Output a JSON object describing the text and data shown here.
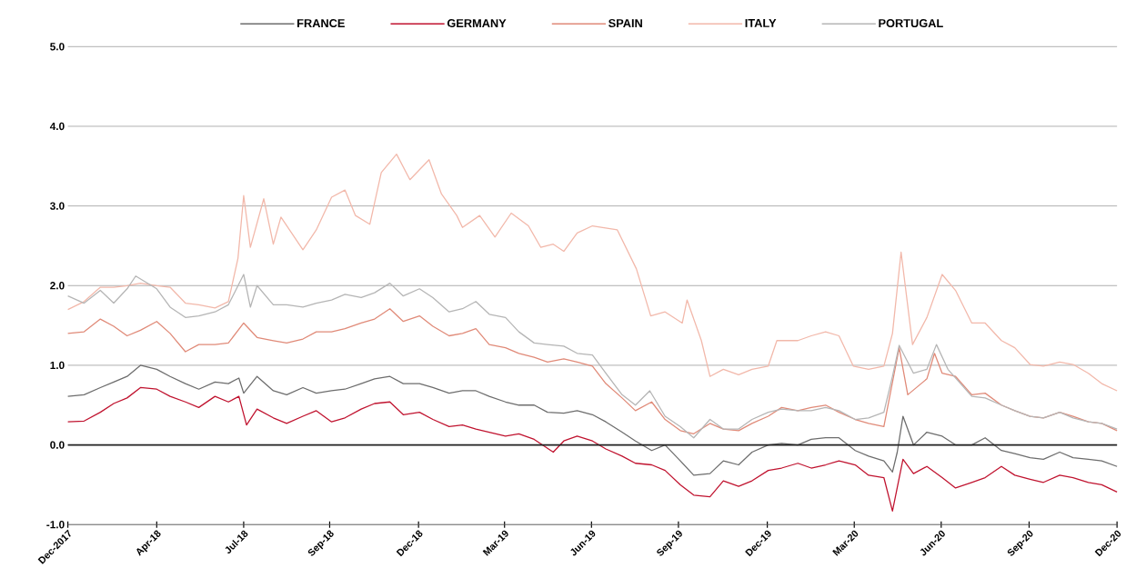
{
  "chart_data": {
    "type": "line",
    "xlim": [
      "2017-12-29",
      "2020-12-31"
    ],
    "xticks": [
      {
        "value": "2017-12-29",
        "label": "Dec-2017"
      },
      {
        "value": "2018-04-01",
        "label": "Apr-18"
      },
      {
        "value": "2018-07-01",
        "label": "Jul-18"
      },
      {
        "value": "2018-09-29",
        "label": "Sep-18"
      },
      {
        "value": "2018-12-31",
        "label": "Dec-18"
      },
      {
        "value": "2019-03-31",
        "label": "Mar-19"
      },
      {
        "value": "2019-06-30",
        "label": "Jun-19"
      },
      {
        "value": "2019-09-29",
        "label": "Sep-19"
      },
      {
        "value": "2019-12-31",
        "label": "Dec-19"
      },
      {
        "value": "2020-03-31",
        "label": "Mar-20"
      },
      {
        "value": "2020-06-30",
        "label": "Jun-20"
      },
      {
        "value": "2020-09-30",
        "label": "Sep-20"
      },
      {
        "value": "2020-12-31",
        "label": "Dec-20"
      }
    ],
    "ylim": [
      -1,
      5
    ],
    "yticks": [
      {
        "value": -1,
        "label": "-1.0"
      },
      {
        "value": 0,
        "label": "0.0"
      },
      {
        "value": 1,
        "label": "1.0"
      },
      {
        "value": 2,
        "label": "2.0"
      },
      {
        "value": 3,
        "label": "3.0"
      },
      {
        "value": 4,
        "label": "4.0"
      },
      {
        "value": 5,
        "label": "5.0"
      }
    ],
    "grid": "y",
    "legend": "top",
    "line_style": "solid",
    "ref_lines": [
      {
        "axis": "y",
        "value": 0,
        "color": "#222222"
      }
    ],
    "series": [
      {
        "name": "FRANCE",
        "color": "#6d6d6d",
        "x": [
          "2017-12-29",
          "2018-01-15",
          "2018-02-01",
          "2018-02-15",
          "2018-03-01",
          "2018-03-15",
          "2018-04-01",
          "2018-04-15",
          "2018-05-01",
          "2018-05-15",
          "2018-06-01",
          "2018-06-15",
          "2018-06-26",
          "2018-07-01",
          "2018-07-15",
          "2018-08-01",
          "2018-08-15",
          "2018-09-01",
          "2018-09-15",
          "2018-10-01",
          "2018-10-15",
          "2018-11-01",
          "2018-11-15",
          "2018-12-01",
          "2018-12-15",
          "2019-01-01",
          "2019-01-15",
          "2019-02-01",
          "2019-02-15",
          "2019-03-01",
          "2019-03-15",
          "2019-04-01",
          "2019-04-15",
          "2019-05-01",
          "2019-05-15",
          "2019-06-01",
          "2019-06-15",
          "2019-07-01",
          "2019-07-15",
          "2019-08-01",
          "2019-08-15",
          "2019-09-01",
          "2019-09-15",
          "2019-10-01",
          "2019-10-15",
          "2019-11-01",
          "2019-11-15",
          "2019-12-01",
          "2019-12-15",
          "2020-01-01",
          "2020-01-15",
          "2020-02-01",
          "2020-02-15",
          "2020-03-01",
          "2020-03-15",
          "2020-04-01",
          "2020-04-15",
          "2020-05-01",
          "2020-05-10",
          "2020-05-15",
          "2020-05-21",
          "2020-06-01",
          "2020-06-15",
          "2020-07-01",
          "2020-07-15",
          "2020-08-01",
          "2020-08-15",
          "2020-09-01",
          "2020-09-15",
          "2020-10-01",
          "2020-10-15",
          "2020-11-01",
          "2020-11-15",
          "2020-12-01",
          "2020-12-15",
          "2020-12-31"
        ],
        "values": [
          0.61,
          0.63,
          0.72,
          0.79,
          0.86,
          1.0,
          0.95,
          0.86,
          0.77,
          0.7,
          0.79,
          0.77,
          0.84,
          0.65,
          0.86,
          0.68,
          0.63,
          0.72,
          0.65,
          0.68,
          0.7,
          0.77,
          0.83,
          0.86,
          0.77,
          0.77,
          0.72,
          0.65,
          0.68,
          0.68,
          0.61,
          0.54,
          0.5,
          0.5,
          0.41,
          0.4,
          0.43,
          0.38,
          0.29,
          0.16,
          0.05,
          -0.07,
          0.0,
          -0.2,
          -0.38,
          -0.36,
          -0.2,
          -0.25,
          -0.09,
          0.0,
          0.02,
          0.0,
          0.07,
          0.09,
          0.09,
          -0.07,
          -0.14,
          -0.2,
          -0.34,
          -0.09,
          0.36,
          0.0,
          0.16,
          0.11,
          0.0,
          0.0,
          0.09,
          -0.07,
          -0.11,
          -0.16,
          -0.18,
          -0.09,
          -0.16,
          -0.18,
          -0.2,
          -0.27
        ]
      },
      {
        "name": "GERMANY",
        "color": "#c0132f",
        "x": [
          "2017-12-29",
          "2018-01-15",
          "2018-02-01",
          "2018-02-15",
          "2018-03-01",
          "2018-03-15",
          "2018-04-01",
          "2018-04-15",
          "2018-05-01",
          "2018-05-15",
          "2018-06-01",
          "2018-06-15",
          "2018-06-26",
          "2018-07-04",
          "2018-07-15",
          "2018-08-01",
          "2018-08-15",
          "2018-09-01",
          "2018-09-15",
          "2018-10-01",
          "2018-10-15",
          "2018-11-01",
          "2018-11-15",
          "2018-12-01",
          "2018-12-15",
          "2019-01-01",
          "2019-01-15",
          "2019-02-01",
          "2019-02-15",
          "2019-03-01",
          "2019-03-15",
          "2019-04-01",
          "2019-04-15",
          "2019-05-01",
          "2019-05-21",
          "2019-06-01",
          "2019-06-15",
          "2019-07-01",
          "2019-07-15",
          "2019-08-01",
          "2019-08-15",
          "2019-09-01",
          "2019-09-15",
          "2019-10-01",
          "2019-10-15",
          "2019-11-01",
          "2019-11-15",
          "2019-12-01",
          "2019-12-15",
          "2020-01-01",
          "2020-01-15",
          "2020-02-01",
          "2020-02-15",
          "2020-03-01",
          "2020-03-15",
          "2020-04-01",
          "2020-04-15",
          "2020-05-01",
          "2020-05-10",
          "2020-05-21",
          "2020-06-01",
          "2020-06-15",
          "2020-07-01",
          "2020-07-15",
          "2020-08-01",
          "2020-08-15",
          "2020-09-01",
          "2020-09-15",
          "2020-10-01",
          "2020-10-15",
          "2020-11-01",
          "2020-11-15",
          "2020-12-01",
          "2020-12-15",
          "2020-12-31"
        ],
        "values": [
          0.29,
          0.3,
          0.41,
          0.52,
          0.59,
          0.72,
          0.7,
          0.61,
          0.54,
          0.47,
          0.61,
          0.54,
          0.61,
          0.25,
          0.45,
          0.34,
          0.27,
          0.36,
          0.43,
          0.29,
          0.34,
          0.45,
          0.52,
          0.54,
          0.38,
          0.41,
          0.32,
          0.23,
          0.25,
          0.2,
          0.16,
          0.11,
          0.14,
          0.07,
          -0.09,
          0.05,
          0.11,
          0.05,
          -0.05,
          -0.14,
          -0.23,
          -0.25,
          -0.32,
          -0.5,
          -0.63,
          -0.65,
          -0.45,
          -0.52,
          -0.45,
          -0.32,
          -0.29,
          -0.23,
          -0.29,
          -0.25,
          -0.2,
          -0.25,
          -0.38,
          -0.41,
          -0.83,
          -0.18,
          -0.36,
          -0.27,
          -0.41,
          -0.54,
          -0.47,
          -0.41,
          -0.27,
          -0.38,
          -0.43,
          -0.47,
          -0.38,
          -0.41,
          -0.47,
          -0.5,
          -0.59
        ]
      },
      {
        "name": "SPAIN",
        "color": "#e08a78",
        "x": [
          "2017-12-29",
          "2018-01-15",
          "2018-02-01",
          "2018-02-15",
          "2018-03-01",
          "2018-03-15",
          "2018-04-01",
          "2018-04-15",
          "2018-05-01",
          "2018-05-15",
          "2018-06-01",
          "2018-06-15",
          "2018-07-01",
          "2018-07-15",
          "2018-08-01",
          "2018-08-15",
          "2018-09-01",
          "2018-09-15",
          "2018-10-01",
          "2018-10-15",
          "2018-11-01",
          "2018-11-15",
          "2018-12-01",
          "2018-12-15",
          "2019-01-01",
          "2019-01-15",
          "2019-02-01",
          "2019-02-15",
          "2019-03-01",
          "2019-03-15",
          "2019-04-01",
          "2019-04-15",
          "2019-05-01",
          "2019-05-15",
          "2019-06-01",
          "2019-06-15",
          "2019-07-01",
          "2019-07-15",
          "2019-08-01",
          "2019-08-15",
          "2019-09-01",
          "2019-09-15",
          "2019-10-01",
          "2019-10-15",
          "2019-11-01",
          "2019-11-15",
          "2019-12-01",
          "2019-12-15",
          "2020-01-01",
          "2020-01-15",
          "2020-02-01",
          "2020-02-15",
          "2020-03-01",
          "2020-03-15",
          "2020-04-01",
          "2020-04-15",
          "2020-05-01",
          "2020-05-17",
          "2020-05-26",
          "2020-06-15",
          "2020-06-23",
          "2020-07-01",
          "2020-07-15",
          "2020-08-01",
          "2020-08-15",
          "2020-09-01",
          "2020-09-15",
          "2020-10-01",
          "2020-10-15",
          "2020-11-01",
          "2020-11-15",
          "2020-12-01",
          "2020-12-15",
          "2020-12-31"
        ],
        "values": [
          1.4,
          1.42,
          1.58,
          1.49,
          1.37,
          1.44,
          1.55,
          1.4,
          1.17,
          1.26,
          1.26,
          1.28,
          1.53,
          1.35,
          1.31,
          1.28,
          1.33,
          1.42,
          1.42,
          1.46,
          1.53,
          1.58,
          1.71,
          1.55,
          1.62,
          1.49,
          1.37,
          1.4,
          1.46,
          1.26,
          1.22,
          1.15,
          1.1,
          1.04,
          1.08,
          1.04,
          0.99,
          0.77,
          0.59,
          0.43,
          0.54,
          0.32,
          0.18,
          0.14,
          0.27,
          0.2,
          0.18,
          0.27,
          0.36,
          0.47,
          0.43,
          0.47,
          0.5,
          0.41,
          0.32,
          0.27,
          0.23,
          1.22,
          0.63,
          0.83,
          1.15,
          0.9,
          0.86,
          0.63,
          0.65,
          0.5,
          0.43,
          0.36,
          0.34,
          0.41,
          0.36,
          0.29,
          0.27,
          0.18
        ]
      },
      {
        "name": "ITALY",
        "color": "#f2b8aa",
        "x": [
          "2017-12-29",
          "2018-01-15",
          "2018-02-01",
          "2018-02-15",
          "2018-03-01",
          "2018-03-15",
          "2018-04-01",
          "2018-04-15",
          "2018-05-01",
          "2018-05-15",
          "2018-06-01",
          "2018-06-15",
          "2018-06-25",
          "2018-07-01",
          "2018-07-08",
          "2018-07-22",
          "2018-08-01",
          "2018-08-09",
          "2018-09-01",
          "2018-09-15",
          "2018-10-01",
          "2018-10-15",
          "2018-10-26",
          "2018-11-10",
          "2018-11-22",
          "2018-12-08",
          "2018-12-22",
          "2019-01-11",
          "2019-01-24",
          "2019-02-09",
          "2019-02-15",
          "2019-03-05",
          "2019-03-21",
          "2019-04-07",
          "2019-04-25",
          "2019-05-08",
          "2019-05-21",
          "2019-06-01",
          "2019-06-15",
          "2019-07-01",
          "2019-07-27",
          "2019-08-16",
          "2019-08-31",
          "2019-09-15",
          "2019-10-03",
          "2019-10-08",
          "2019-10-23",
          "2019-11-01",
          "2019-11-15",
          "2019-12-01",
          "2019-12-15",
          "2020-01-01",
          "2020-01-10",
          "2020-02-01",
          "2020-02-15",
          "2020-03-01",
          "2020-03-15",
          "2020-03-30",
          "2020-04-15",
          "2020-05-01",
          "2020-05-10",
          "2020-05-19",
          "2020-05-31",
          "2020-06-15",
          "2020-07-01",
          "2020-07-15",
          "2020-08-01",
          "2020-08-15",
          "2020-09-01",
          "2020-09-15",
          "2020-10-01",
          "2020-10-15",
          "2020-11-01",
          "2020-11-15",
          "2020-12-01",
          "2020-12-15",
          "2020-12-31"
        ],
        "values": [
          1.7,
          1.8,
          1.98,
          1.98,
          2.0,
          2.03,
          2.0,
          1.98,
          1.78,
          1.76,
          1.72,
          1.8,
          2.34,
          3.13,
          2.48,
          3.09,
          2.52,
          2.86,
          2.45,
          2.7,
          3.11,
          3.2,
          2.88,
          2.77,
          3.42,
          3.65,
          3.33,
          3.58,
          3.15,
          2.88,
          2.73,
          2.88,
          2.61,
          2.91,
          2.75,
          2.48,
          2.52,
          2.43,
          2.66,
          2.75,
          2.7,
          2.21,
          1.62,
          1.67,
          1.53,
          1.82,
          1.31,
          0.86,
          0.95,
          0.88,
          0.95,
          0.99,
          1.31,
          1.31,
          1.37,
          1.42,
          1.37,
          0.99,
          0.95,
          0.99,
          1.4,
          2.42,
          1.26,
          1.6,
          2.14,
          1.94,
          1.53,
          1.53,
          1.31,
          1.22,
          1.01,
          0.99,
          1.04,
          1.01,
          0.9,
          0.77,
          0.68
        ]
      },
      {
        "name": "PORTUGAL",
        "color": "#b5b5b5",
        "x": [
          "2017-12-29",
          "2018-01-15",
          "2018-02-01",
          "2018-02-15",
          "2018-03-01",
          "2018-03-10",
          "2018-04-01",
          "2018-04-15",
          "2018-05-01",
          "2018-05-15",
          "2018-06-01",
          "2018-06-15",
          "2018-07-01",
          "2018-07-08",
          "2018-07-15",
          "2018-08-01",
          "2018-08-15",
          "2018-09-01",
          "2018-09-15",
          "2018-10-01",
          "2018-10-15",
          "2018-11-01",
          "2018-11-15",
          "2018-12-01",
          "2018-12-15",
          "2019-01-01",
          "2019-01-15",
          "2019-02-01",
          "2019-02-15",
          "2019-03-01",
          "2019-03-15",
          "2019-04-01",
          "2019-04-15",
          "2019-05-01",
          "2019-05-15",
          "2019-06-01",
          "2019-06-15",
          "2019-07-01",
          "2019-07-15",
          "2019-08-01",
          "2019-08-15",
          "2019-08-30",
          "2019-09-15",
          "2019-10-01",
          "2019-10-15",
          "2019-11-01",
          "2019-11-15",
          "2019-12-01",
          "2019-12-15",
          "2020-01-01",
          "2020-01-15",
          "2020-02-01",
          "2020-02-15",
          "2020-03-01",
          "2020-03-15",
          "2020-04-01",
          "2020-04-15",
          "2020-05-01",
          "2020-05-10",
          "2020-05-17",
          "2020-06-01",
          "2020-06-15",
          "2020-06-25",
          "2020-07-07",
          "2020-08-01",
          "2020-08-15",
          "2020-09-01",
          "2020-09-15",
          "2020-10-01",
          "2020-10-15",
          "2020-11-01",
          "2020-11-15",
          "2020-12-01",
          "2020-12-15",
          "2020-12-31"
        ],
        "values": [
          1.87,
          1.78,
          1.94,
          1.78,
          1.96,
          2.12,
          1.96,
          1.73,
          1.6,
          1.62,
          1.67,
          1.76,
          2.14,
          1.73,
          2.0,
          1.76,
          1.76,
          1.73,
          1.78,
          1.82,
          1.89,
          1.85,
          1.91,
          2.03,
          1.87,
          1.96,
          1.85,
          1.67,
          1.71,
          1.8,
          1.64,
          1.6,
          1.42,
          1.28,
          1.26,
          1.24,
          1.15,
          1.13,
          0.9,
          0.63,
          0.5,
          0.68,
          0.36,
          0.23,
          0.09,
          0.32,
          0.2,
          0.2,
          0.32,
          0.41,
          0.45,
          0.43,
          0.43,
          0.47,
          0.43,
          0.32,
          0.34,
          0.41,
          0.86,
          1.25,
          0.9,
          0.95,
          1.26,
          0.95,
          0.61,
          0.59,
          0.5,
          0.43,
          0.36,
          0.34,
          0.41,
          0.34,
          0.29,
          0.27,
          0.2
        ]
      }
    ]
  }
}
